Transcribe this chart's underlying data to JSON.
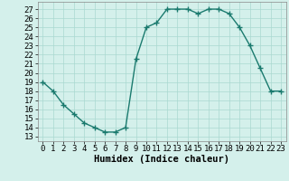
{
  "x": [
    0,
    1,
    2,
    3,
    4,
    5,
    6,
    7,
    8,
    9,
    10,
    11,
    12,
    13,
    14,
    15,
    16,
    17,
    18,
    19,
    20,
    21,
    22,
    23
  ],
  "y": [
    19,
    18,
    16.5,
    15.5,
    14.5,
    14,
    13.5,
    13.5,
    14,
    21.5,
    25,
    25.5,
    27,
    27,
    27,
    26.5,
    27,
    27,
    26.5,
    25,
    23,
    20.5,
    18,
    18
  ],
  "xlabel": "Humidex (Indice chaleur)",
  "xlim": [
    -0.5,
    23.5
  ],
  "ylim": [
    12.5,
    27.8
  ],
  "yticks": [
    13,
    14,
    15,
    16,
    17,
    18,
    19,
    20,
    21,
    22,
    23,
    24,
    25,
    26,
    27
  ],
  "xticks": [
    0,
    1,
    2,
    3,
    4,
    5,
    6,
    7,
    8,
    9,
    10,
    11,
    12,
    13,
    14,
    15,
    16,
    17,
    18,
    19,
    20,
    21,
    22,
    23
  ],
  "line_color": "#1a7a6e",
  "bg_color": "#d4f0eb",
  "grid_color": "#aad8d0",
  "marker": "+",
  "marker_size": 4,
  "linewidth": 1.0,
  "tick_fontsize": 6.5,
  "xlabel_fontsize": 7.5
}
